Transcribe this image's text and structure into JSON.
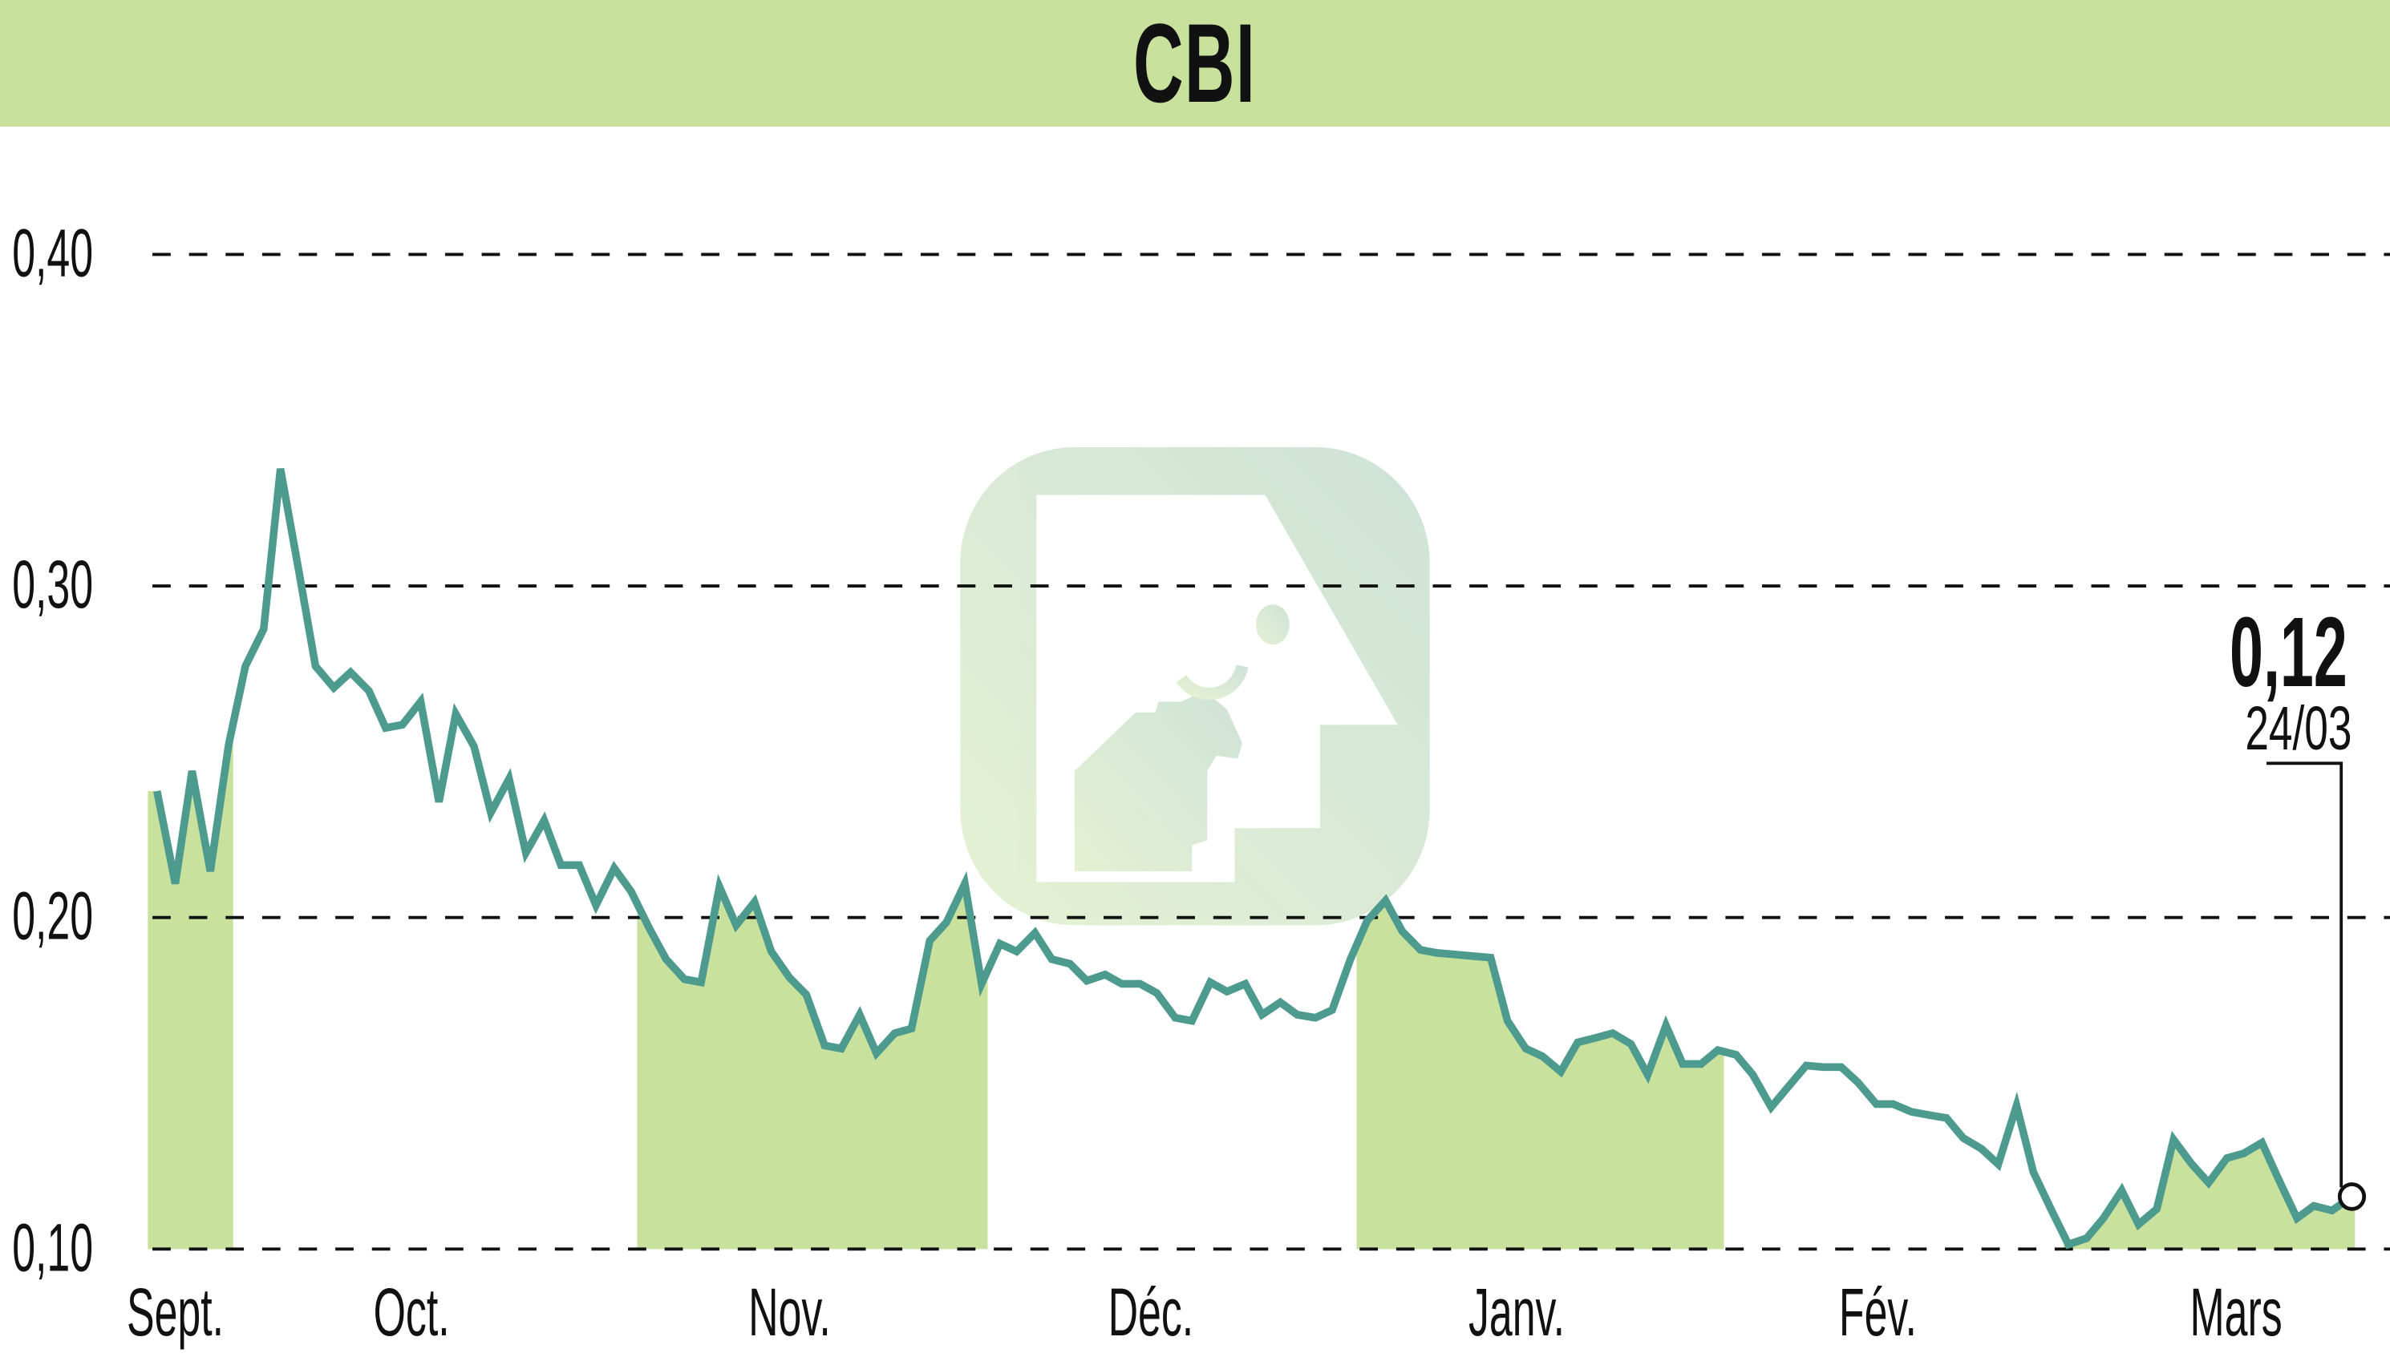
{
  "title": "CBI",
  "colors": {
    "title_bar": "#c8e29e",
    "band_fill": "#c8e29e",
    "line": "#4d9a8f",
    "grid": "#111111",
    "watermark": "#cfe3cc"
  },
  "y_axis": {
    "ticks": [
      {
        "label": "0,40",
        "value": 0.4
      },
      {
        "label": "0,30",
        "value": 0.3
      },
      {
        "label": "0,20",
        "value": 0.2
      },
      {
        "label": "0,10",
        "value": 0.1
      }
    ]
  },
  "x_axis": {
    "months": [
      {
        "label": "Sept.",
        "x": 115
      },
      {
        "label": "Oct.",
        "x": 270
      },
      {
        "label": "Nov.",
        "x": 518
      },
      {
        "label": "Déc.",
        "x": 755
      },
      {
        "label": "Janv.",
        "x": 995
      },
      {
        "label": "Fév.",
        "x": 1232
      },
      {
        "label": "Mars",
        "x": 1467
      }
    ]
  },
  "last_point": {
    "value_label": "0,12",
    "date_label": "24/03"
  },
  "chart_data": {
    "type": "line",
    "title": "CBI",
    "xlabel": "",
    "ylabel": "",
    "ylim": [
      0.1,
      0.4
    ],
    "grid": "horizontal dashed",
    "x_tick_labels": [
      "Sept.",
      "Oct.",
      "Nov.",
      "Déc.",
      "Janv.",
      "Fév.",
      "Mars"
    ],
    "y_tick_labels": [
      "0,10",
      "0,20",
      "0,30",
      "0,40"
    ],
    "shaded_months": [
      "Sept.",
      "Nov.",
      "Janv.",
      "Mars"
    ],
    "annotation": {
      "value": "0,12",
      "date": "24/03"
    },
    "series": [
      {
        "name": "CBI",
        "values": [
          0.238,
          0.21,
          0.244,
          0.214,
          0.252,
          0.276,
          0.287,
          0.336,
          0.305,
          0.276,
          0.269,
          0.274,
          0.268,
          0.257,
          0.258,
          0.265,
          0.235,
          0.261,
          0.251,
          0.231,
          0.241,
          0.219,
          0.229,
          0.215,
          0.215,
          0.203,
          0.214,
          0.207,
          0.196,
          0.187,
          0.181,
          0.18,
          0.209,
          0.198,
          0.205,
          0.19,
          0.182,
          0.177,
          0.161,
          0.16,
          0.171,
          0.159,
          0.165,
          0.167,
          0.193,
          0.199,
          0.21,
          0.18,
          0.192,
          0.19,
          0.195,
          0.187,
          0.186,
          0.181,
          0.183,
          0.18,
          0.18,
          0.177,
          0.17,
          0.169,
          0.181,
          0.178,
          0.18,
          0.171,
          0.175,
          0.171,
          0.17,
          0.173,
          0.188,
          0.2,
          0.206,
          0.197,
          0.191,
          0.19,
          0.19,
          0.189,
          0.189,
          0.17,
          0.161,
          0.159,
          0.155,
          0.164,
          0.165,
          0.166,
          0.163,
          0.154,
          0.169,
          0.157,
          0.157,
          0.161,
          0.16,
          0.154,
          0.144,
          0.15,
          0.156,
          0.156,
          0.156,
          0.151,
          0.145,
          0.145,
          0.143,
          0.142,
          0.141,
          0.135,
          0.132,
          0.127,
          0.145,
          0.124,
          0.112,
          0.101,
          0.103,
          0.109,
          0.117,
          0.107,
          0.112,
          0.133,
          0.125,
          0.12,
          0.127,
          0.128,
          0.131,
          0.12,
          0.109,
          0.112,
          0.111,
          0.115
        ]
      }
    ],
    "points_svg": [
      [
        103,
        513
      ],
      [
        115,
        573
      ],
      [
        126,
        500
      ],
      [
        138,
        565
      ],
      [
        150,
        483
      ],
      [
        161,
        432
      ],
      [
        173,
        408
      ],
      [
        184,
        304
      ],
      [
        196,
        370
      ],
      [
        207,
        432
      ],
      [
        219,
        446
      ],
      [
        230,
        436
      ],
      [
        242,
        448
      ],
      [
        253,
        472
      ],
      [
        264,
        470
      ],
      [
        276,
        455
      ],
      [
        288,
        520
      ],
      [
        299,
        463
      ],
      [
        311,
        484
      ],
      [
        322,
        527
      ],
      [
        334,
        505
      ],
      [
        345,
        553
      ],
      [
        357,
        532
      ],
      [
        368,
        561
      ],
      [
        380,
        561
      ],
      [
        391,
        587
      ],
      [
        403,
        563
      ],
      [
        414,
        578
      ],
      [
        426,
        602
      ],
      [
        437,
        622
      ],
      [
        449,
        635
      ],
      [
        460,
        637
      ],
      [
        472,
        575
      ],
      [
        483,
        600
      ],
      [
        495,
        585
      ],
      [
        506,
        617
      ],
      [
        518,
        634
      ],
      [
        529,
        645
      ],
      [
        541,
        678
      ],
      [
        552,
        680
      ],
      [
        564,
        658
      ],
      [
        575,
        683
      ],
      [
        587,
        670
      ],
      [
        598,
        667
      ],
      [
        610,
        610
      ],
      [
        621,
        598
      ],
      [
        633,
        573
      ],
      [
        644,
        638
      ],
      [
        656,
        612
      ],
      [
        667,
        617
      ],
      [
        679,
        605
      ],
      [
        690,
        622
      ],
      [
        702,
        625
      ],
      [
        713,
        636
      ],
      [
        725,
        632
      ],
      [
        736,
        638
      ],
      [
        748,
        638
      ],
      [
        759,
        644
      ],
      [
        771,
        660
      ],
      [
        782,
        662
      ],
      [
        794,
        637
      ],
      [
        805,
        643
      ],
      [
        817,
        638
      ],
      [
        828,
        658
      ],
      [
        840,
        650
      ],
      [
        851,
        658
      ],
      [
        863,
        660
      ],
      [
        874,
        655
      ],
      [
        886,
        622
      ],
      [
        897,
        597
      ],
      [
        909,
        584
      ],
      [
        920,
        604
      ],
      [
        932,
        616
      ],
      [
        943,
        618
      ],
      [
        955,
        619
      ],
      [
        966,
        620
      ],
      [
        978,
        621
      ],
      [
        989,
        662
      ],
      [
        1001,
        680
      ],
      [
        1012,
        685
      ],
      [
        1024,
        695
      ],
      [
        1035,
        676
      ],
      [
        1047,
        673
      ],
      [
        1058,
        670
      ],
      [
        1070,
        677
      ],
      [
        1081,
        697
      ],
      [
        1093,
        665
      ],
      [
        1104,
        690
      ],
      [
        1116,
        690
      ],
      [
        1127,
        681
      ],
      [
        1139,
        684
      ],
      [
        1150,
        697
      ],
      [
        1162,
        718
      ],
      [
        1173,
        705
      ],
      [
        1185,
        691
      ],
      [
        1196,
        692
      ],
      [
        1208,
        692
      ],
      [
        1219,
        702
      ],
      [
        1231,
        716
      ],
      [
        1242,
        716
      ],
      [
        1254,
        721
      ],
      [
        1265,
        723
      ],
      [
        1277,
        725
      ],
      [
        1288,
        738
      ],
      [
        1300,
        745
      ],
      [
        1311,
        755
      ],
      [
        1323,
        717
      ],
      [
        1334,
        760
      ],
      [
        1346,
        785
      ],
      [
        1357,
        807
      ],
      [
        1369,
        803
      ],
      [
        1380,
        790
      ],
      [
        1392,
        772
      ],
      [
        1403,
        794
      ],
      [
        1415,
        784
      ],
      [
        1426,
        739
      ],
      [
        1438,
        755
      ],
      [
        1449,
        767
      ],
      [
        1461,
        751
      ],
      [
        1472,
        748
      ],
      [
        1484,
        741
      ],
      [
        1495,
        765
      ],
      [
        1507,
        790
      ],
      [
        1518,
        782
      ],
      [
        1530,
        785
      ],
      [
        1543,
        776
      ]
    ],
    "bands_svg": [
      [
        97,
        153
      ],
      [
        418,
        648
      ],
      [
        890,
        1131
      ],
      [
        1354,
        1545
      ]
    ]
  }
}
